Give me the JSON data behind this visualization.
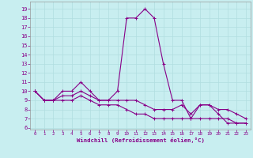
{
  "xlabel": "Windchill (Refroidissement éolien,°C)",
  "background_color": "#c8eef0",
  "grid_color": "#b0dde0",
  "line_color": "#880088",
  "xlim": [
    -0.5,
    23.5
  ],
  "ylim": [
    5.8,
    19.8
  ],
  "yticks": [
    6,
    7,
    8,
    9,
    10,
    11,
    12,
    13,
    14,
    15,
    16,
    17,
    18,
    19
  ],
  "xticks": [
    0,
    1,
    2,
    3,
    4,
    5,
    6,
    7,
    8,
    9,
    10,
    11,
    12,
    13,
    14,
    15,
    16,
    17,
    18,
    19,
    20,
    21,
    22,
    23
  ],
  "series": [
    {
      "x": [
        0,
        1,
        2,
        3,
        4,
        5,
        6,
        7,
        8,
        9,
        10,
        11,
        12,
        13,
        14,
        15,
        16,
        17,
        18,
        19,
        20,
        21,
        22,
        23
      ],
      "y": [
        10,
        9,
        9,
        10,
        10,
        11,
        10,
        9,
        9,
        10,
        18,
        18,
        19,
        18,
        13,
        9,
        9,
        7,
        8.5,
        8.5,
        7.5,
        6.5,
        6.5,
        6.5
      ]
    },
    {
      "x": [
        0,
        1,
        2,
        3,
        4,
        5,
        6,
        7,
        8,
        9,
        10,
        11,
        12,
        13,
        14,
        15,
        16,
        17,
        18,
        19,
        20,
        21,
        22,
        23
      ],
      "y": [
        10,
        9,
        9,
        9.5,
        9.5,
        10,
        9.5,
        9,
        9,
        9,
        9,
        9,
        8.5,
        8,
        8,
        8,
        8.5,
        7.5,
        8.5,
        8.5,
        8,
        8,
        7.5,
        7
      ]
    },
    {
      "x": [
        0,
        1,
        2,
        3,
        4,
        5,
        6,
        7,
        8,
        9,
        10,
        11,
        12,
        13,
        14,
        15,
        16,
        17,
        18,
        19,
        20,
        21,
        22,
        23
      ],
      "y": [
        10,
        9,
        9,
        9,
        9,
        9.5,
        9,
        8.5,
        8.5,
        8.5,
        8,
        7.5,
        7.5,
        7,
        7,
        7,
        7,
        7,
        7,
        7,
        7,
        7,
        6.5,
        6.5
      ]
    }
  ]
}
